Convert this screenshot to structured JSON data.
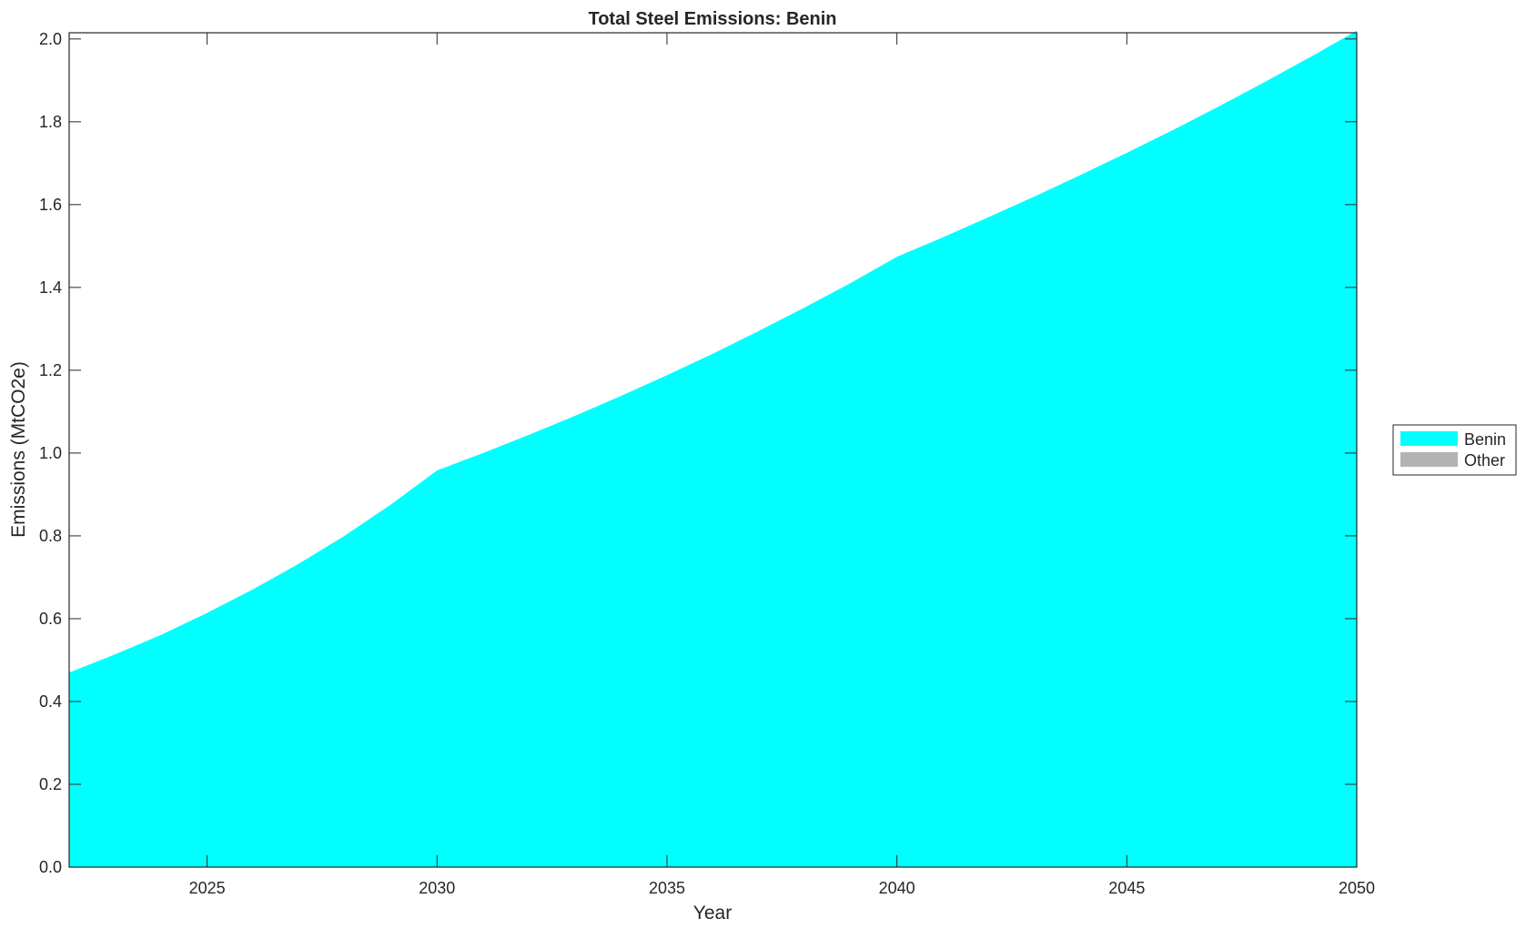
{
  "chart_data": {
    "type": "area",
    "stacked": true,
    "title": "Total Steel Emissions: Benin",
    "xlabel": "Year",
    "ylabel": "Emissions (MtCO2e)",
    "xlim": [
      2022,
      2050
    ],
    "ylim": [
      0,
      2.015
    ],
    "xticks": [
      2025,
      2030,
      2035,
      2040,
      2045,
      2050
    ],
    "yticks": [
      0.0,
      0.2,
      0.4,
      0.6,
      0.8,
      1.0,
      1.2,
      1.4,
      1.6,
      1.8,
      2.0
    ],
    "grid": false,
    "legend_placement": "outside-right",
    "x": [
      2022,
      2023,
      2024,
      2025,
      2026,
      2027,
      2028,
      2029,
      2030,
      2031,
      2032,
      2033,
      2034,
      2035,
      2036,
      2037,
      2038,
      2039,
      2040,
      2041,
      2042,
      2043,
      2044,
      2045,
      2046,
      2047,
      2048,
      2049,
      2050
    ],
    "series": [
      {
        "name": "Benin",
        "color": "#00ffff",
        "values": [
          0.47,
          0.514,
          0.561,
          0.614,
          0.671,
          0.733,
          0.801,
          0.876,
          0.958,
          1.0,
          1.044,
          1.09,
          1.138,
          1.188,
          1.24,
          1.295,
          1.352,
          1.411,
          1.474,
          1.521,
          1.57,
          1.62,
          1.672,
          1.725,
          1.78,
          1.837,
          1.896,
          1.957,
          2.02
        ]
      },
      {
        "name": "Other",
        "color": "#b3b3b3",
        "values": [
          0,
          0,
          0,
          0,
          0,
          0,
          0,
          0,
          0,
          0,
          0,
          0,
          0,
          0,
          0,
          0,
          0,
          0,
          0,
          0,
          0,
          0,
          0,
          0,
          0,
          0,
          0,
          0,
          0
        ]
      }
    ]
  }
}
